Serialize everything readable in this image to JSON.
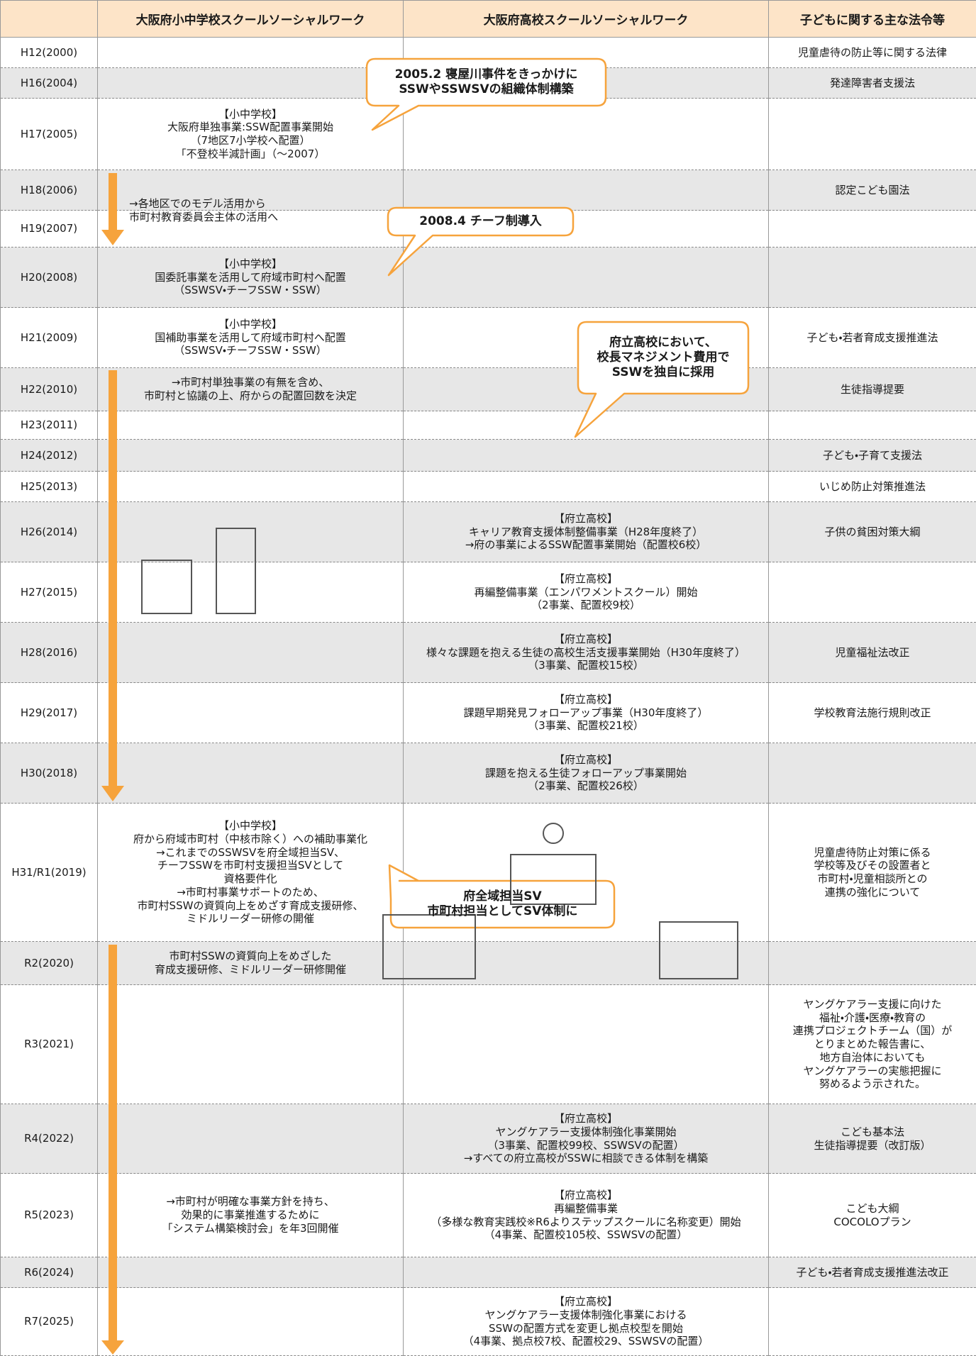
{
  "header": {
    "year": "",
    "elementary": "大阪府小中学校スクールソーシャルワーク",
    "high": "大阪府高校スクールソーシャルワーク",
    "law": "子どもに関する主な法令等"
  },
  "rows": [
    {
      "year": "H12(2000)",
      "law": "児童虐待の防止等に関する法律"
    },
    {
      "year": "H16(2004)",
      "law": "発達障害者支援法"
    },
    {
      "year": "H17(2005)",
      "elementary": "【小中学校】\n大阪府単独事業:SSW配置事業開始\n（7地区7小学校へ配置）\n「不登校半減計画」（～2007）"
    },
    {
      "year": "H18(2006)",
      "law": "認定こども園法"
    },
    {
      "year": "H19(2007)"
    },
    {
      "year": "H20(2008)",
      "elementary": "【小中学校】\n国委託事業を活用して府域市町村へ配置\n（SSWSV・チーフSSW・SSW）"
    },
    {
      "year": "H21(2009)",
      "elementary": "【小中学校】\n国補助事業を活用して府域市町村へ配置\n（SSWSV・チーフSSW・SSW）",
      "law": "子ども・若者育成支援推進法"
    },
    {
      "year": "H22(2010)",
      "elementary": "→市町村単独事業の有無を含め、\n市町村と協議の上、府からの配置回数を決定",
      "law": "生徒指導提要"
    },
    {
      "year": "H23(2011)"
    },
    {
      "year": "H24(2012)",
      "law": "子ども・子育て支援法"
    },
    {
      "year": "H25(2013)",
      "law": "いじめ防止対策推進法"
    },
    {
      "year": "H26(2014)",
      "high": "【府立高校】\nキャリア教育支援体制整備事業（H28年度終了）\n→府の事業によるSSW配置事業開始（配置校6校）",
      "law": "子供の貧困対策大綱"
    },
    {
      "year": "H27(2015)",
      "high": "【府立高校】\n再編整備事業（エンパワメントスクール）開始\n（2事業、配置校9校）"
    },
    {
      "year": "H28(2016)",
      "high": "【府立高校】\n様々な課題を抱える生徒の高校生活支援事業開始（H30年度終了）\n（3事業、配置校15校）",
      "law": "児童福祉法改正"
    },
    {
      "year": "H29(2017)",
      "high": "【府立高校】\n課題早期発見フォローアップ事業（H30年度終了）\n（3事業、配置校21校）",
      "law": "学校教育法施行規則改正"
    },
    {
      "year": "H30(2018)",
      "high": "【府立高校】\n課題を抱える生徒フォローアップ事業開始\n（2事業、配置校26校）"
    },
    {
      "year": "H31/R1(2019)",
      "elementary": "【小中学校】\n府から府域市町村（中核市除く）への補助事業化\n→これまでのSSWSVを府全域担当SV、\nチーフSSWを市町村支援担当SVとして\n資格要件化\n→市町村事業サポートのため、\n市町村SSWの資質向上をめざす育成支援研修、\nミドルリーダー研修の開催",
      "law": "児童虐待防止対策に係る\n学校等及びその設置者と\n市町村・児童相談所との\n連携の強化について"
    },
    {
      "year": "R2(2020)",
      "elementary": "市町村SSWの資質向上をめざした\n育成支援研修、ミドルリーダー研修開催"
    },
    {
      "year": "R3(2021)",
      "law": "ヤングケアラー支援に向けた\n福祉・介護・医療・教育の\n連携プロジェクトチーム（国）が\nとりまとめた報告書に、\n地方自治体においても\nヤングケアラーの実態把握に\n努めるよう示された。"
    },
    {
      "year": "R4(2022)",
      "high": "【府立高校】\nヤングケアラー支援体制強化事業開始\n（3事業、配置校99校、SSWSVの配置）\n→すべての府立高校がSSWに相談できる体制を構築",
      "law": "こども基本法\n生徒指導提要（改訂版）"
    },
    {
      "year": "R5(2023)",
      "elementary": "→市町村が明確な事業方針を持ち、\n効果的に事業推進するために\n「システム構築検討会」を年3回開催",
      "high": "【府立高校】\n再編整備事業\n（多様な教育実践校※R6よりステップスクールに名称変更）開始\n（4事業、配置校105校、SSWSVの配置）",
      "law": "こども大綱\nCOCOLOプラン"
    },
    {
      "year": "R6(2024)",
      "law": "子ども・若者育成支援推進法改正"
    },
    {
      "year": "R7(2025)",
      "high": "【府立高校】\nヤングケアラー支援体制強化事業における\nSSWの配置方式を変更し拠点校型を開始\n（4事業、拠点校7校、配置校29、SSWSVの配置）"
    }
  ],
  "notes": [
    "→各地区でのモデル活用から\n市町村教育委員会主体の活用へ"
  ],
  "callouts": [
    "2005.2 寝屋川事件をきっかけに\nSSWやSSWSVの組織体制構築",
    "2008.4 チーフ制導入",
    "府立高校において、\n校長マネジメント費用で\nSSWを独自に採用",
    "府全域担当SV\n市町村担当としてSV体制に"
  ]
}
